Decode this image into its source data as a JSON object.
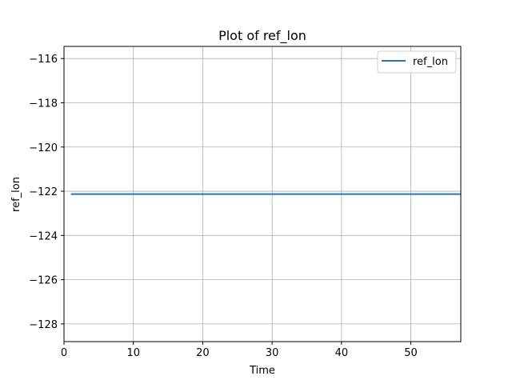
{
  "chart_data": {
    "type": "line",
    "title": "Plot of ref_lon",
    "xlabel": "Time",
    "ylabel": "ref_lon",
    "xlim": [
      0,
      57.2
    ],
    "ylim": [
      -128.8,
      -115.45
    ],
    "xticks": [
      0,
      10,
      20,
      30,
      40,
      50
    ],
    "yticks": [
      -116,
      -118,
      -120,
      -122,
      -124,
      -126,
      -128
    ],
    "xtick_labels": [
      "0",
      "10",
      "20",
      "30",
      "40",
      "50"
    ],
    "ytick_labels": [
      "−116",
      "−118",
      "−120",
      "−122",
      "−124",
      "−126",
      "−128"
    ],
    "grid": true,
    "legend_position": "top-right",
    "series": [
      {
        "name": "ref_lon",
        "color": "#1f77b4",
        "x": [
          1,
          57.2
        ],
        "y": [
          -122.13,
          -122.13
        ]
      }
    ]
  }
}
